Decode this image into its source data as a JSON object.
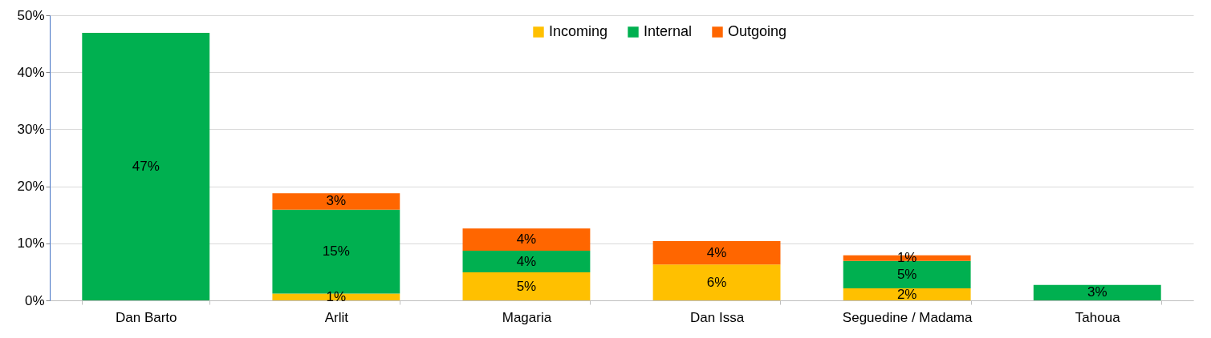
{
  "chart_data": {
    "type": "bar",
    "stacked": true,
    "categories": [
      "Dan Barto",
      "Arlit",
      "Magaria",
      "Dan Issa",
      "Seguedine / Madama",
      "Tahoua"
    ],
    "series": [
      {
        "name": "Incoming",
        "color": "#ffc000",
        "values": [
          null,
          1.2,
          4.9,
          6.3,
          2.1,
          null
        ],
        "value_labels": [
          null,
          "1%",
          "5%",
          "6%",
          "2%",
          null
        ]
      },
      {
        "name": "Internal",
        "color": "#00b050",
        "values": [
          46.9,
          14.7,
          3.8,
          null,
          4.8,
          2.7
        ],
        "value_labels": [
          "47%",
          "15%",
          "4%",
          null,
          "5%",
          "3%"
        ]
      },
      {
        "name": "Outgoing",
        "color": "#ff6600",
        "values": [
          null,
          2.9,
          3.9,
          4.1,
          1.0,
          null
        ],
        "value_labels": [
          null,
          "3%",
          "4%",
          "4%",
          "1%",
          null
        ]
      }
    ],
    "ylim": [
      0,
      50
    ],
    "yticks": [
      {
        "value": 0,
        "label": "0%"
      },
      {
        "value": 10,
        "label": "10%"
      },
      {
        "value": 20,
        "label": "20%"
      },
      {
        "value": 30,
        "label": "30%"
      },
      {
        "value": 40,
        "label": "40%"
      },
      {
        "value": 50,
        "label": "50%"
      }
    ],
    "grid": "y",
    "legend": "top"
  }
}
